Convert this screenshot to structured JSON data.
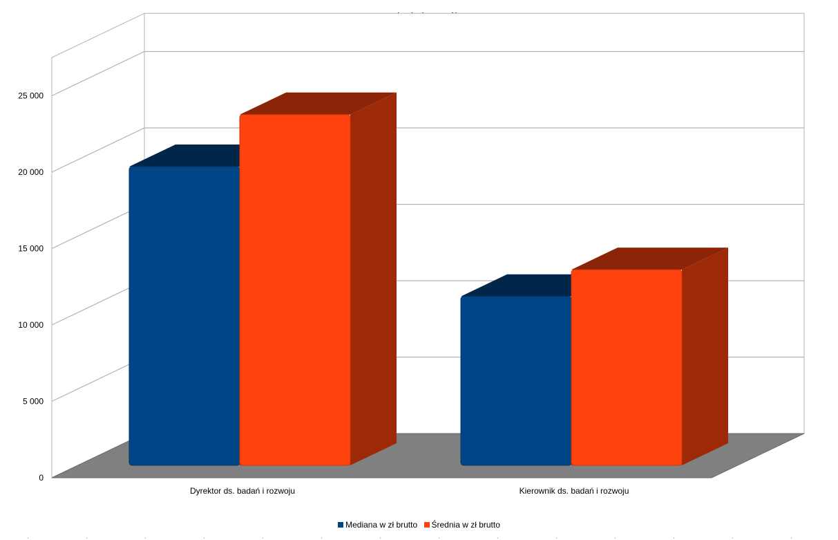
{
  "chart_data": {
    "type": "bar",
    "title": "Badania i rozwój",
    "categories": [
      "Dyrektor ds. badań i rozwoju",
      "Kierownik ds. badań i rozwoju"
    ],
    "series": [
      {
        "name": "Mediana w zł brutto",
        "values": [
          19550,
          11050
        ],
        "color": "#004586"
      },
      {
        "name": "Średnia w zł brutto",
        "values": [
          22950,
          12800
        ],
        "color": "#ff420e"
      }
    ],
    "yticks": [
      "0",
      "5 000",
      "10 000",
      "15 000",
      "20 000",
      "25 000"
    ],
    "ylim": [
      0,
      27500
    ],
    "xlabel": "",
    "ylabel": "",
    "grid": true,
    "style": "3d",
    "legend_position": "bottom"
  }
}
